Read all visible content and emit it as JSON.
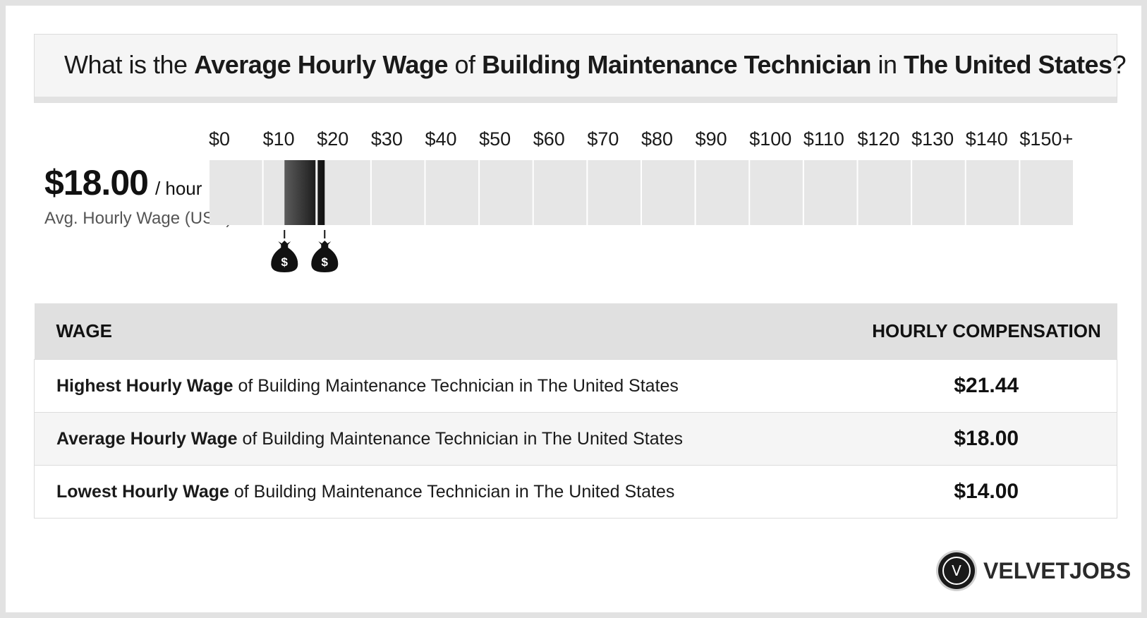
{
  "header": {
    "prefix": "What is the ",
    "metric": "Average Hourly Wage",
    "of": " of ",
    "job": "Building Maintenance Technician",
    "in": " in ",
    "location": "The United States",
    "suffix": "?"
  },
  "summary": {
    "value": "$18.00",
    "unit": "/ hour",
    "label": "Avg. Hourly Wage (USD)"
  },
  "chart_data": {
    "type": "bar",
    "tick_labels": [
      "$0",
      "$10",
      "$20",
      "$30",
      "$40",
      "$50",
      "$60",
      "$70",
      "$80",
      "$90",
      "$100",
      "$110",
      "$120",
      "$130",
      "$140",
      "$150+"
    ],
    "tick_values": [
      0,
      10,
      20,
      30,
      40,
      50,
      60,
      70,
      80,
      90,
      100,
      110,
      120,
      130,
      140,
      150
    ],
    "xlim": [
      0,
      150
    ],
    "range": {
      "low": 14.0,
      "high": 21.44
    },
    "average": 18.0,
    "markers": [
      14.0,
      21.44
    ]
  },
  "table": {
    "headers": [
      "WAGE",
      "HOURLY COMPENSATION"
    ],
    "rows": [
      {
        "bold": "Highest Hourly Wage",
        "rest": " of Building Maintenance Technician in The United States",
        "value": "$21.44"
      },
      {
        "bold": "Average Hourly Wage",
        "rest": " of Building Maintenance Technician in The United States",
        "value": "$18.00"
      },
      {
        "bold": "Lowest Hourly Wage",
        "rest": " of Building Maintenance Technician in The United States",
        "value": "$14.00"
      }
    ]
  },
  "brand": {
    "logo_letter": "V",
    "name": "VELVETJOBS"
  },
  "icons": {
    "marker": "money-bag-icon",
    "logo": "velvetjobs-logo-icon"
  }
}
